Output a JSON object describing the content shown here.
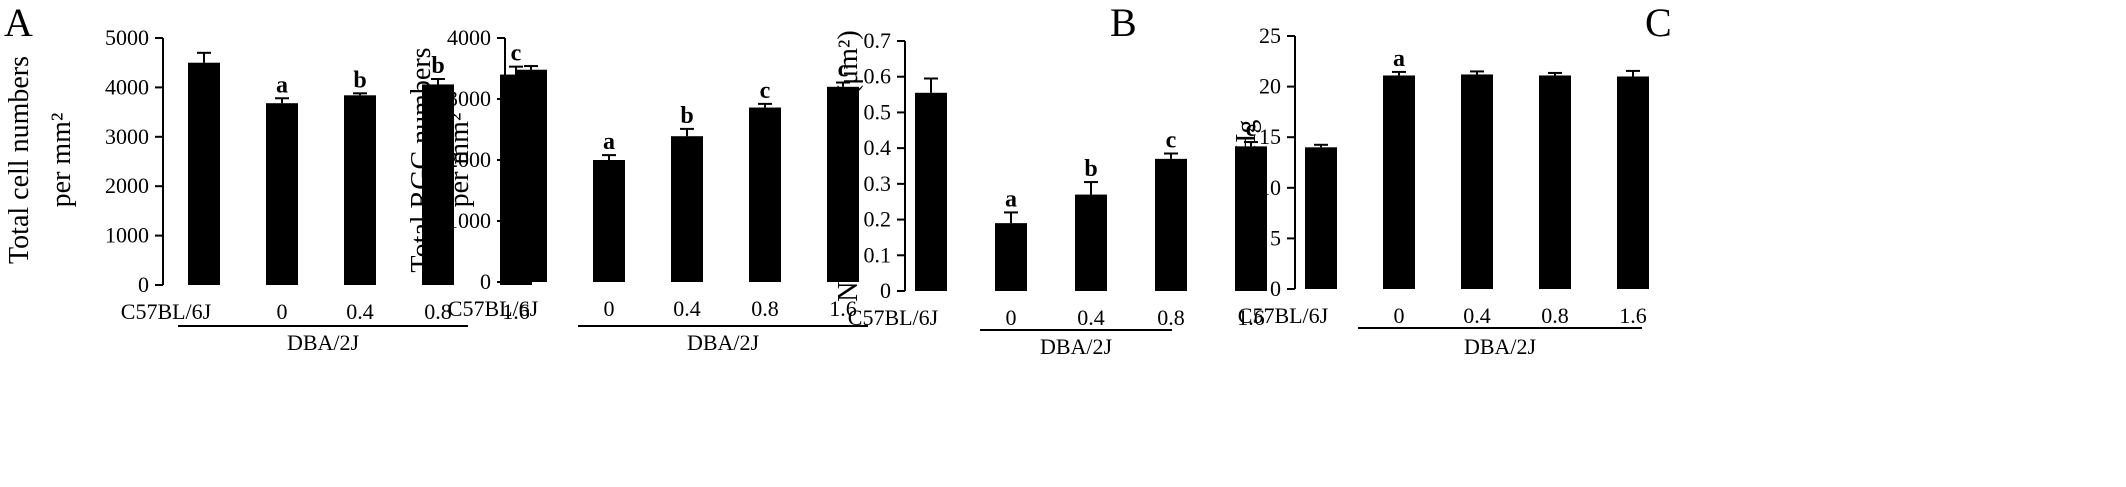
{
  "panel_labels": [
    "A",
    "B",
    "C"
  ],
  "chart_data": [
    {
      "type": "bar",
      "panel": "A",
      "ylabel_lines": [
        "Total cell numbers",
        "per mm²"
      ],
      "ylim": [
        0,
        5000
      ],
      "yticks": [
        0,
        1000,
        2000,
        3000,
        4000,
        5000
      ],
      "tick_labels": [
        "0",
        "1000",
        "2000",
        "3000",
        "4000",
        "5000"
      ],
      "categories": [
        "C57BL/6J",
        "0",
        "0.4",
        "0.8",
        "1.6"
      ],
      "group_label": "DBA/2J",
      "values": [
        4500,
        3680,
        3840,
        4060,
        4260
      ],
      "errors": [
        200,
        100,
        40,
        110,
        160
      ],
      "sig": [
        "",
        "a",
        "b",
        "b",
        "c"
      ]
    },
    {
      "type": "bar",
      "panel": "",
      "ylabel_lines": [
        "Total RGC numbers",
        "per mm²"
      ],
      "ylim": [
        0,
        4000
      ],
      "yticks": [
        0,
        1000,
        2000,
        3000,
        4000
      ],
      "tick_labels": [
        "0",
        "1000",
        "2000",
        "3000",
        "4000"
      ],
      "categories": [
        "C57BL/6J",
        "0",
        "0.4",
        "0.8",
        "1.6"
      ],
      "group_label": "DBA/2J",
      "values": [
        3480,
        2000,
        2390,
        2860,
        3200
      ],
      "errors": [
        60,
        80,
        120,
        60,
        70
      ],
      "sig": [
        "",
        "a",
        "b",
        "c",
        "c"
      ]
    },
    {
      "type": "bar",
      "panel": "B",
      "ylabel_lines": [
        "Number of Axons (μm²)"
      ],
      "ylim": [
        0,
        0.7
      ],
      "yticks": [
        0,
        0.1,
        0.2,
        0.3,
        0.4,
        0.5,
        0.6,
        0.7
      ],
      "tick_labels": [
        "0",
        "0.1",
        "0.2",
        "0.3",
        "0.4",
        "0.5",
        "0.6",
        "0.7"
      ],
      "categories": [
        "C57BL/6J",
        "0",
        "0.4",
        "0.8",
        "1.6"
      ],
      "group_label": "DBA/2J",
      "values": [
        0.555,
        0.19,
        0.27,
        0.37,
        0.405
      ],
      "errors": [
        0.04,
        0.03,
        0.035,
        0.015,
        0.012
      ],
      "sig": [
        "",
        "a",
        "b",
        "c",
        "c"
      ]
    },
    {
      "type": "bar",
      "panel": "C",
      "ylabel_lines": [
        "mm Hg"
      ],
      "ylim": [
        0,
        25
      ],
      "yticks": [
        0,
        5,
        10,
        15,
        20,
        25
      ],
      "tick_labels": [
        "0",
        "5",
        "10",
        "15",
        "20",
        "25"
      ],
      "categories": [
        "C57BL/6J",
        "0",
        "0.4",
        "0.8",
        "1.6"
      ],
      "group_label": "DBA/2J",
      "values": [
        14.0,
        21.1,
        21.2,
        21.1,
        21.0
      ],
      "errors": [
        0.25,
        0.35,
        0.3,
        0.25,
        0.55
      ],
      "sig": [
        "",
        "a",
        "",
        "",
        ""
      ]
    }
  ]
}
